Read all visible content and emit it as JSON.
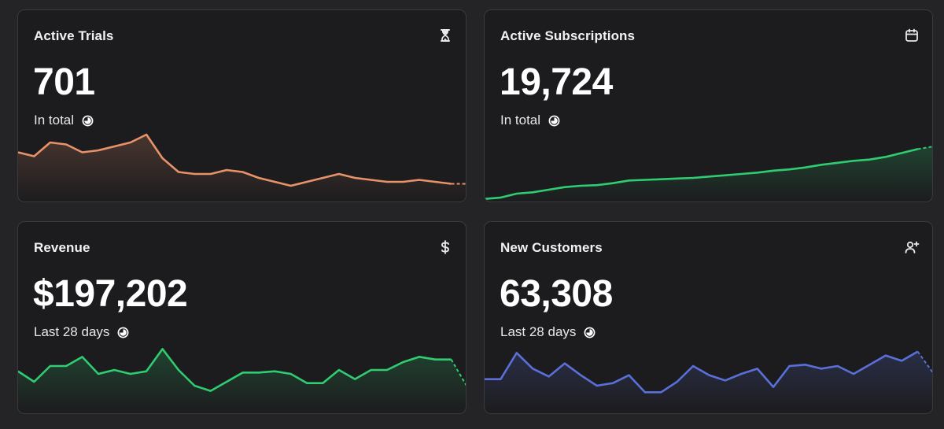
{
  "cards": [
    {
      "title": "Active Trials",
      "value": "701",
      "subtitle": "In total",
      "icon": "hourglass-icon",
      "color": "#e8926a",
      "chart_data": {
        "type": "area",
        "values": [
          95,
          93,
          100,
          99,
          95,
          96,
          98,
          100,
          104,
          92,
          85,
          84,
          84,
          86,
          85,
          82,
          80,
          78,
          80,
          82,
          84,
          82,
          81,
          80,
          80,
          81,
          80,
          79,
          79
        ],
        "ylim": [
          70,
          110
        ]
      }
    },
    {
      "title": "Active Subscriptions",
      "value": "19,724",
      "subtitle": "In total",
      "icon": "calendar-icon",
      "color": "#2fcc71",
      "chart_data": {
        "type": "area",
        "values": [
          2,
          3,
          6,
          7,
          9,
          11,
          12,
          12.5,
          14,
          16,
          16.5,
          17,
          17.5,
          18,
          19,
          20,
          21,
          22,
          23.5,
          24.5,
          26,
          28,
          29.5,
          31,
          32,
          34,
          37,
          40,
          42
        ],
        "ylim": [
          0,
          60
        ]
      }
    },
    {
      "title": "Revenue",
      "value": "$197,202",
      "subtitle": "Last 28 days",
      "icon": "dollar-icon",
      "color": "#2fcc71",
      "chart_data": {
        "type": "area",
        "values": [
          32,
          24,
          36,
          36,
          43,
          30,
          33,
          30,
          32,
          49,
          33,
          21,
          17,
          24,
          31,
          31,
          32,
          30,
          23,
          23,
          33,
          26,
          33,
          33,
          39,
          43,
          41,
          41,
          20
        ],
        "ylim": [
          0,
          60
        ]
      }
    },
    {
      "title": "New Customers",
      "value": "63,308",
      "subtitle": "Last 28 days",
      "icon": "user-plus-icon",
      "color": "#5b6fd8",
      "chart_data": {
        "type": "area",
        "values": [
          26,
          26,
          46,
          34,
          28,
          38,
          29,
          21,
          23,
          29,
          16,
          16,
          24,
          36,
          29,
          25,
          30,
          34,
          20,
          36,
          37,
          34,
          36,
          30,
          37,
          44,
          40,
          47,
          30
        ],
        "ylim": [
          0,
          60
        ]
      }
    }
  ]
}
